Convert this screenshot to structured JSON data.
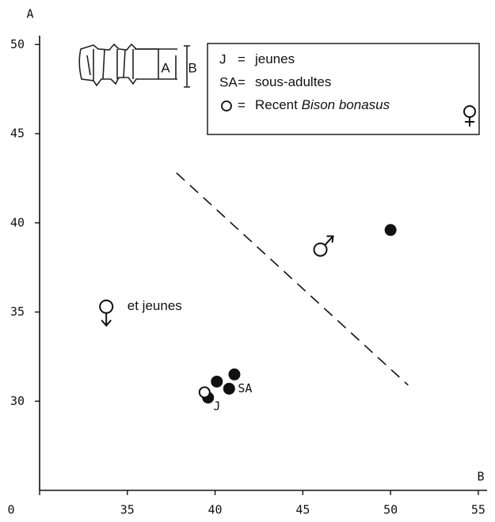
{
  "chart_data": {
    "type": "scatter",
    "xlabel": "B",
    "ylabel": "A",
    "xlim": [
      30,
      55.5
    ],
    "ylim": [
      25,
      50.5
    ],
    "xticks": [
      {
        "value": 30,
        "label": "0"
      },
      35,
      40,
      45,
      50,
      55
    ],
    "yticks": [
      30,
      35,
      40,
      45,
      50
    ],
    "series": [
      {
        "color": "#111",
        "filled": true,
        "x": [
          39.6,
          40.1,
          40.8,
          41.1,
          50.0
        ],
        "values": [
          30.2,
          31.1,
          30.7,
          31.5,
          39.6
        ]
      },
      {
        "color": "#111",
        "filled": false,
        "symbols": [
          null,
          "male",
          "female"
        ],
        "x": [
          39.4,
          46.0,
          33.8
        ],
        "values": [
          30.5,
          38.5,
          35.3
        ]
      }
    ],
    "trend_line": {
      "x": [
        37.8,
        51.0
      ],
      "values": [
        42.8,
        30.9
      ],
      "dashed": true
    },
    "annotations": [
      {
        "text": "et jeunes",
        "x": 35.0,
        "y": 35.3
      },
      {
        "text": "J",
        "x": 39.9,
        "y": 29.7
      },
      {
        "text": "SA",
        "x": 41.3,
        "y": 30.7
      }
    ],
    "legend": [
      {
        "key": "J",
        "eq": "=",
        "text": "jeunes"
      },
      {
        "key": "SA",
        "eq": "=",
        "text": "sous-adultes"
      },
      {
        "key": null,
        "eq": "=",
        "text": "Recent",
        "italic": "Bison bonasus"
      }
    ],
    "sketch_labels": [
      "A",
      "B"
    ]
  }
}
